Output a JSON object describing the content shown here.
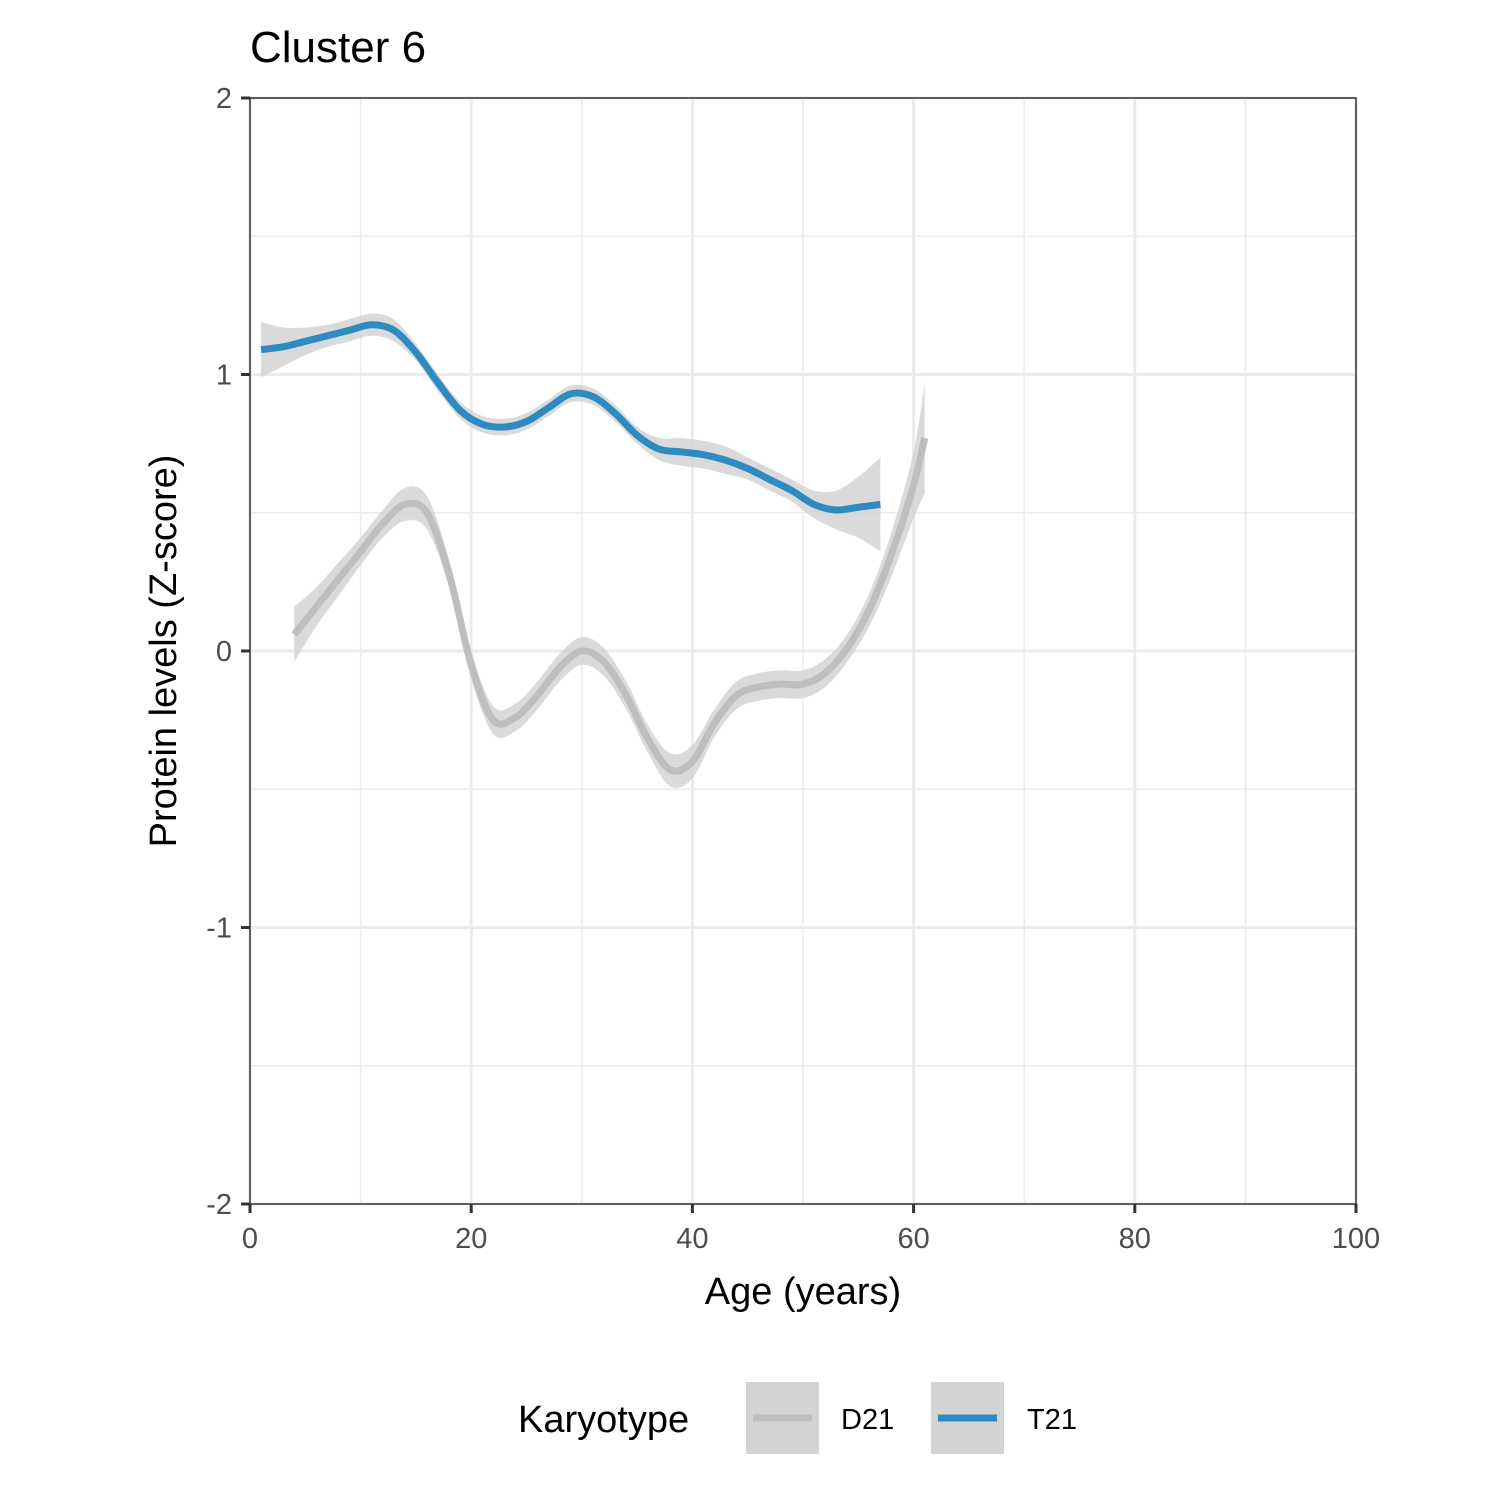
{
  "chart_data": {
    "type": "line",
    "title": "Cluster 6",
    "xlabel": "Age (years)",
    "ylabel": "Protein levels (Z-score)",
    "xlim": [
      0,
      100
    ],
    "ylim": [
      -2,
      2
    ],
    "x_ticks": [
      0,
      20,
      40,
      60,
      80,
      100
    ],
    "y_ticks": [
      -2,
      -1,
      0,
      1,
      2
    ],
    "x_tick_labels": [
      "0",
      "20",
      "40",
      "60",
      "80",
      "100"
    ],
    "y_tick_labels": [
      "-2",
      "-1",
      "0",
      "1",
      "2"
    ],
    "grid": true,
    "legend": {
      "title": "Karyotype",
      "position": "bottom"
    },
    "series": [
      {
        "name": "D21",
        "color": "#bebebe",
        "ribbon_color": "#d3d3d3",
        "points": [
          [
            4,
            0.06
          ],
          [
            6,
            0.16
          ],
          [
            8,
            0.26
          ],
          [
            10,
            0.36
          ],
          [
            12,
            0.46
          ],
          [
            14,
            0.53
          ],
          [
            16,
            0.5
          ],
          [
            18,
            0.28
          ],
          [
            20,
            -0.05
          ],
          [
            22,
            -0.25
          ],
          [
            24,
            -0.24
          ],
          [
            26,
            -0.16
          ],
          [
            28,
            -0.06
          ],
          [
            30,
            0.0
          ],
          [
            32,
            -0.04
          ],
          [
            34,
            -0.16
          ],
          [
            36,
            -0.32
          ],
          [
            38,
            -0.43
          ],
          [
            40,
            -0.4
          ],
          [
            42,
            -0.26
          ],
          [
            44,
            -0.16
          ],
          [
            46,
            -0.13
          ],
          [
            48,
            -0.12
          ],
          [
            50,
            -0.12
          ],
          [
            52,
            -0.08
          ],
          [
            54,
            0.01
          ],
          [
            56,
            0.15
          ],
          [
            58,
            0.35
          ],
          [
            60,
            0.6
          ],
          [
            61,
            0.77
          ]
        ],
        "ci_width": [
          0.1,
          0.07,
          0.06,
          0.05,
          0.05,
          0.06,
          0.06,
          0.05,
          0.05,
          0.05,
          0.05,
          0.05,
          0.05,
          0.05,
          0.05,
          0.05,
          0.05,
          0.06,
          0.06,
          0.05,
          0.05,
          0.05,
          0.05,
          0.05,
          0.05,
          0.05,
          0.06,
          0.08,
          0.12,
          0.2
        ]
      },
      {
        "name": "T21",
        "color": "#2e8bc0",
        "ribbon_color": "#d3d3d3",
        "points": [
          [
            1,
            1.09
          ],
          [
            3,
            1.1
          ],
          [
            5,
            1.12
          ],
          [
            7,
            1.14
          ],
          [
            9,
            1.16
          ],
          [
            11,
            1.18
          ],
          [
            13,
            1.16
          ],
          [
            15,
            1.08
          ],
          [
            17,
            0.97
          ],
          [
            19,
            0.87
          ],
          [
            21,
            0.82
          ],
          [
            23,
            0.81
          ],
          [
            25,
            0.83
          ],
          [
            27,
            0.88
          ],
          [
            29,
            0.93
          ],
          [
            31,
            0.92
          ],
          [
            33,
            0.86
          ],
          [
            35,
            0.78
          ],
          [
            37,
            0.73
          ],
          [
            39,
            0.72
          ],
          [
            41,
            0.71
          ],
          [
            43,
            0.69
          ],
          [
            45,
            0.66
          ],
          [
            47,
            0.62
          ],
          [
            49,
            0.58
          ],
          [
            51,
            0.53
          ],
          [
            53,
            0.51
          ],
          [
            55,
            0.52
          ],
          [
            57,
            0.53
          ]
        ],
        "ci_width": [
          0.1,
          0.07,
          0.05,
          0.04,
          0.04,
          0.04,
          0.04,
          0.03,
          0.03,
          0.03,
          0.03,
          0.03,
          0.03,
          0.03,
          0.03,
          0.03,
          0.03,
          0.03,
          0.04,
          0.05,
          0.05,
          0.05,
          0.04,
          0.04,
          0.04,
          0.05,
          0.07,
          0.11,
          0.17
        ]
      }
    ]
  }
}
